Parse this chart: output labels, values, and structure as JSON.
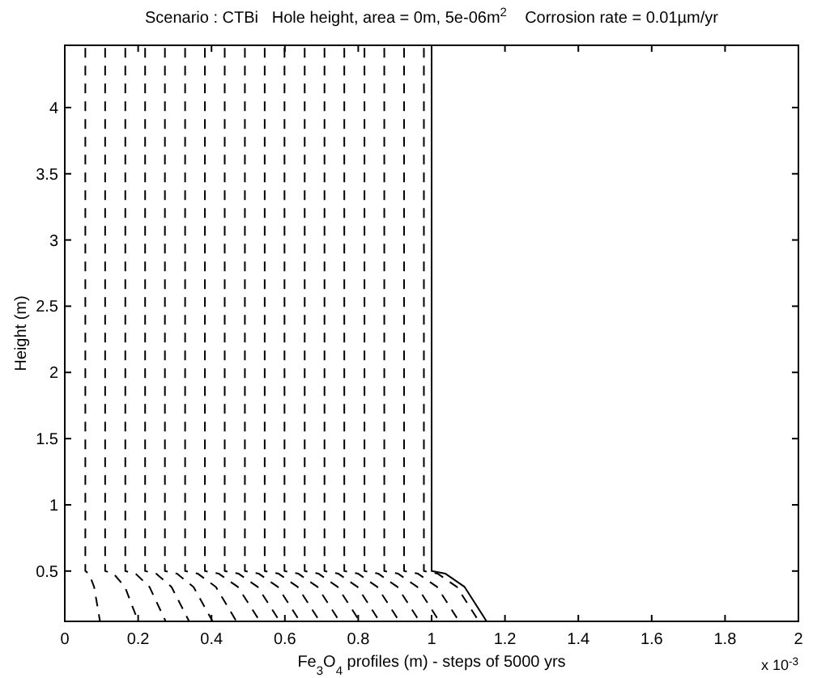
{
  "chart_data": {
    "type": "line",
    "title": "Scenario : CTBi   Hole height, area = 0m, 5e-06m$^{2}$    Corrosion rate = 0.01µm/yr",
    "xlabel": "Fe$_{3}$O$_{4}$ profiles (m) - steps of 5000 yrs",
    "ylabel": "Height (m)",
    "annotations": [
      "x 10$^{-3}$"
    ],
    "xlim": [
      0,
      2
    ],
    "xticks": [
      0,
      0.2,
      0.4,
      0.6,
      0.8,
      1,
      1.2,
      1.4,
      1.6,
      1.8,
      2
    ],
    "ylim": [
      0.12,
      4.47
    ],
    "yticks": [
      0.5,
      1,
      1.5,
      2,
      2.5,
      3,
      3.5,
      4
    ],
    "grid": false,
    "series": [
      {
        "color": "#000000",
        "line_style": "dashed",
        "x": [
          0.056,
          0.056,
          0.066,
          0.08,
          0.096
        ],
        "values": [
          4.45,
          0.5,
          0.48,
          0.38,
          0.12
        ]
      },
      {
        "color": "#000000",
        "line_style": "dashed",
        "x": [
          0.11,
          0.11,
          0.133,
          0.164,
          0.2
        ],
        "values": [
          4.45,
          0.5,
          0.48,
          0.38,
          0.12
        ]
      },
      {
        "color": "#000000",
        "line_style": "dashed",
        "x": [
          0.165,
          0.165,
          0.193,
          0.231,
          0.275
        ],
        "values": [
          4.45,
          0.5,
          0.48,
          0.38,
          0.12
        ]
      },
      {
        "color": "#000000",
        "line_style": "dashed",
        "x": [
          0.219,
          0.219,
          0.249,
          0.291,
          0.339
        ],
        "values": [
          4.45,
          0.5,
          0.48,
          0.38,
          0.12
        ]
      },
      {
        "color": "#000000",
        "line_style": "dashed",
        "x": [
          0.273,
          0.273,
          0.306,
          0.351,
          0.403
        ],
        "values": [
          4.45,
          0.5,
          0.48,
          0.38,
          0.12
        ]
      },
      {
        "color": "#000000",
        "line_style": "dashed",
        "x": [
          0.328,
          0.328,
          0.363,
          0.412,
          0.468
        ],
        "values": [
          4.45,
          0.5,
          0.48,
          0.38,
          0.12
        ]
      },
      {
        "color": "#000000",
        "line_style": "dashed",
        "x": [
          0.382,
          0.382,
          0.42,
          0.472,
          0.532
        ],
        "values": [
          4.45,
          0.5,
          0.48,
          0.38,
          0.12
        ]
      },
      {
        "color": "#000000",
        "line_style": "dashed",
        "x": [
          0.436,
          0.436,
          0.474,
          0.526,
          0.586
        ],
        "values": [
          4.45,
          0.5,
          0.48,
          0.38,
          0.12
        ]
      },
      {
        "color": "#000000",
        "line_style": "dashed",
        "x": [
          0.491,
          0.491,
          0.529,
          0.581,
          0.641
        ],
        "values": [
          4.45,
          0.5,
          0.48,
          0.38,
          0.12
        ]
      },
      {
        "color": "#000000",
        "line_style": "dashed",
        "x": [
          0.545,
          0.545,
          0.583,
          0.635,
          0.695
        ],
        "values": [
          4.45,
          0.5,
          0.48,
          0.38,
          0.12
        ]
      },
      {
        "color": "#000000",
        "line_style": "dashed",
        "x": [
          0.599,
          0.599,
          0.637,
          0.689,
          0.749
        ],
        "values": [
          4.45,
          0.5,
          0.48,
          0.38,
          0.12
        ]
      },
      {
        "color": "#000000",
        "line_style": "dashed",
        "x": [
          0.654,
          0.654,
          0.692,
          0.744,
          0.804
        ],
        "values": [
          4.45,
          0.5,
          0.48,
          0.38,
          0.12
        ]
      },
      {
        "color": "#000000",
        "line_style": "dashed",
        "x": [
          0.708,
          0.708,
          0.746,
          0.798,
          0.858
        ],
        "values": [
          4.45,
          0.5,
          0.48,
          0.38,
          0.12
        ]
      },
      {
        "color": "#000000",
        "line_style": "dashed",
        "x": [
          0.762,
          0.762,
          0.8,
          0.852,
          0.912
        ],
        "values": [
          4.45,
          0.5,
          0.48,
          0.38,
          0.12
        ]
      },
      {
        "color": "#000000",
        "line_style": "dashed",
        "x": [
          0.817,
          0.817,
          0.855,
          0.907,
          0.967
        ],
        "values": [
          4.45,
          0.5,
          0.48,
          0.38,
          0.12
        ]
      },
      {
        "color": "#000000",
        "line_style": "dashed",
        "x": [
          0.871,
          0.871,
          0.909,
          0.961,
          1.021
        ],
        "values": [
          4.45,
          0.5,
          0.48,
          0.38,
          0.12
        ]
      },
      {
        "color": "#000000",
        "line_style": "dashed",
        "x": [
          0.925,
          0.925,
          0.963,
          1.015,
          1.075
        ],
        "values": [
          4.45,
          0.5,
          0.48,
          0.38,
          0.12
        ]
      },
      {
        "color": "#000000",
        "line_style": "dashed",
        "x": [
          0.979,
          0.979,
          1.017,
          1.069,
          1.129
        ],
        "values": [
          4.45,
          0.5,
          0.48,
          0.38,
          0.12
        ]
      },
      {
        "color": "#000000",
        "line_style": "solid",
        "x": [
          1.0,
          1.0,
          1.038,
          1.09,
          1.15
        ],
        "values": [
          4.45,
          0.5,
          0.48,
          0.38,
          0.12
        ]
      }
    ]
  }
}
